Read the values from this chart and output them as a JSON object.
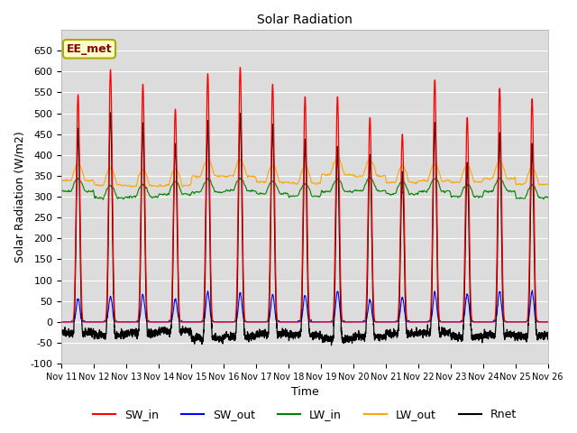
{
  "title": "Solar Radiation",
  "xlabel": "Time",
  "ylabel": "Solar Radiation (W/m2)",
  "legend_label": "EE_met",
  "series_labels": [
    "SW_in",
    "SW_out",
    "LW_in",
    "LW_out",
    "Rnet"
  ],
  "series_colors": [
    "red",
    "blue",
    "green",
    "orange",
    "black"
  ],
  "ylim": [
    -100,
    700
  ],
  "yticks": [
    -100,
    -50,
    0,
    50,
    100,
    150,
    200,
    250,
    300,
    350,
    400,
    450,
    500,
    550,
    600,
    650
  ],
  "n_days": 15,
  "start_day": 11,
  "background_color": "#dcdcdc",
  "grid_color": "white",
  "figsize": [
    6.4,
    4.8
  ],
  "dpi": 100
}
